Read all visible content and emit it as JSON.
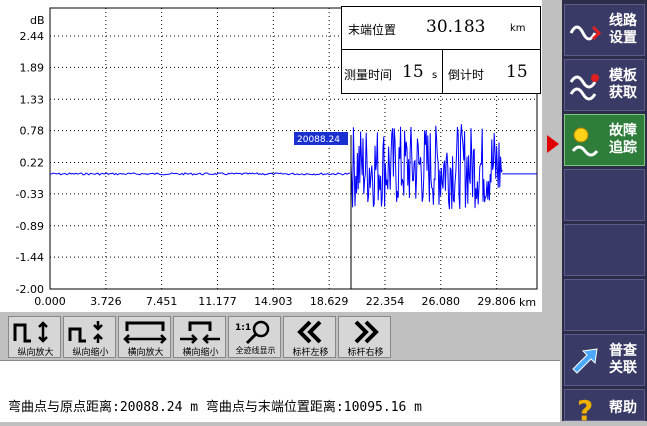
{
  "chart": {
    "y_unit": "dB",
    "x_unit": "km",
    "y_ticks": [
      "2.44",
      "1.89",
      "1.33",
      "0.78",
      "0.22",
      "-0.33",
      "-0.89",
      "-1.44",
      "-2.00"
    ],
    "x_ticks": [
      "0.000",
      "3.726",
      "7.451",
      "11.177",
      "14.903",
      "18.629",
      "22.354",
      "26.080",
      "29.806"
    ],
    "marker_label": "20088.24",
    "trace_color": "#0000ff"
  },
  "chart_data": {
    "type": "line",
    "xlabel": "",
    "ylabel": "",
    "x_unit": "km",
    "y_unit": "dB",
    "xlim": [
      0,
      32.5
    ],
    "ylim": [
      -2.0,
      2.44
    ],
    "grid": true,
    "series": [
      {
        "x": [
          0,
          5,
          10,
          15,
          20.088
        ],
        "y": [
          0.02,
          0.02,
          0.02,
          0.02,
          0.02
        ]
      },
      {
        "x": [
          20.088,
          21,
          22,
          23,
          24,
          25,
          26,
          27,
          28,
          29,
          30.183
        ],
        "y_range": [
          -0.6,
          0.9
        ]
      },
      {
        "x": [
          30.183,
          32.5
        ],
        "y": [
          0.02,
          0.02
        ]
      }
    ],
    "cursor_x": 20.088
  },
  "info": {
    "end_pos_label": "末端位置",
    "end_pos_value": "30.183",
    "end_pos_unit": "km",
    "measure_time_label": "测量时间",
    "measure_time_value": "15",
    "measure_time_unit": "s",
    "countdown_label": "倒计时",
    "countdown_value": "15"
  },
  "sidebar": {
    "items": [
      {
        "label": "线路\n设置",
        "icon": "line-wave-icon"
      },
      {
        "label": "模板\n获取",
        "icon": "template-wave-icon"
      },
      {
        "label": "故障\n追踪",
        "icon": "fault-trace-icon"
      },
      {
        "label": "",
        "icon": ""
      },
      {
        "label": "",
        "icon": ""
      },
      {
        "label": "",
        "icon": ""
      },
      {
        "label": "普查\n关联",
        "icon": "survey-arrow-icon"
      },
      {
        "label": "帮助",
        "icon": "help-icon"
      }
    ]
  },
  "toolbar": {
    "buttons": [
      {
        "label": "纵向放大",
        "icon": "vertical-zoom-in-icon"
      },
      {
        "label": "纵向缩小",
        "icon": "vertical-zoom-out-icon"
      },
      {
        "label": "横向放大",
        "icon": "horizontal-zoom-in-icon"
      },
      {
        "label": "横向缩小",
        "icon": "horizontal-zoom-out-icon"
      },
      {
        "label": "全迹线显示",
        "icon": "full-trace-icon",
        "badge": "1:1"
      },
      {
        "label": "标杆左移",
        "icon": "cursor-left-icon"
      },
      {
        "label": "标杆右移",
        "icon": "cursor-right-icon"
      }
    ]
  },
  "status": {
    "text": "弯曲点与原点距离:20088.24 m   弯曲点与末端位置距离:10095.16 m"
  }
}
